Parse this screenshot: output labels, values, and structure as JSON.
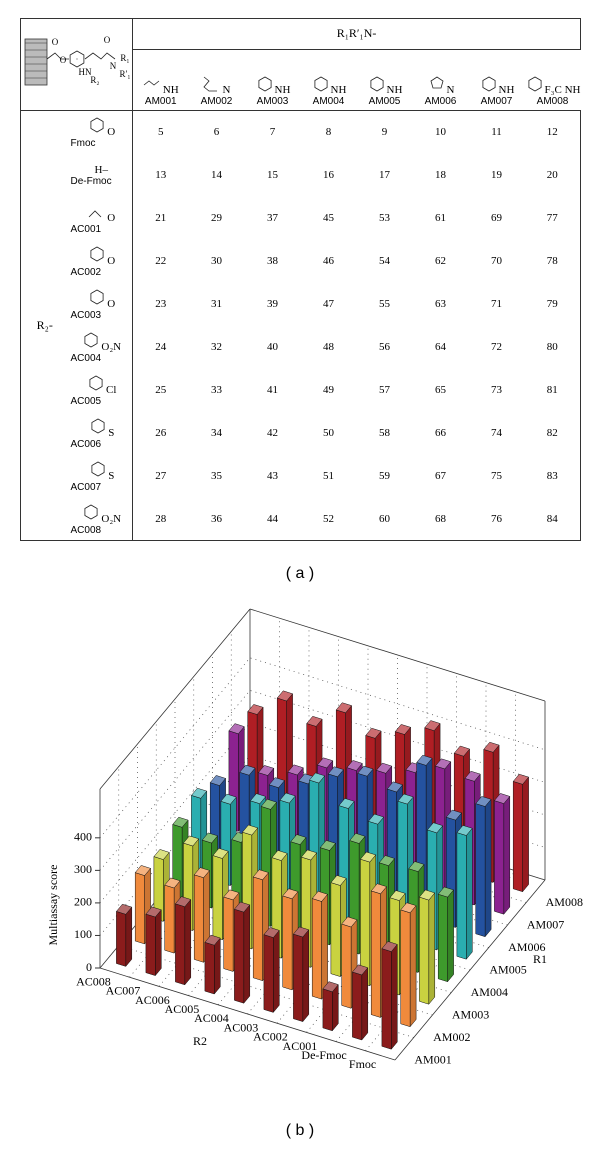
{
  "table": {
    "corner_labels": [
      "O",
      "O",
      "HN",
      "O",
      "N",
      "R₁",
      "R′₁",
      "R₂"
    ],
    "header": "R₁R′₁N-",
    "r2_label": "R₂-",
    "columns": [
      {
        "code": "AM001",
        "fragment": "NH"
      },
      {
        "code": "AM002",
        "fragment": "N"
      },
      {
        "code": "AM003",
        "fragment": "NH"
      },
      {
        "code": "AM004",
        "fragment": "NH"
      },
      {
        "code": "AM005",
        "fragment": "NH"
      },
      {
        "code": "AM006",
        "fragment": "N"
      },
      {
        "code": "AM007",
        "fragment": "NH"
      },
      {
        "code": "AM008",
        "fragment": "F₃C NH"
      }
    ],
    "rows": [
      {
        "name": "Fmoc",
        "fragment": "O",
        "cells": [
          5,
          6,
          7,
          8,
          9,
          10,
          11,
          12
        ]
      },
      {
        "name": "De-Fmoc",
        "fragment": "H–",
        "cells": [
          13,
          14,
          15,
          16,
          17,
          18,
          19,
          20
        ]
      },
      {
        "name": "AC001",
        "fragment": "O",
        "cells": [
          21,
          29,
          37,
          45,
          53,
          61,
          69,
          77
        ]
      },
      {
        "name": "AC002",
        "fragment": "O",
        "cells": [
          22,
          30,
          38,
          46,
          54,
          62,
          70,
          78
        ]
      },
      {
        "name": "AC003",
        "fragment": "O",
        "cells": [
          23,
          31,
          39,
          47,
          55,
          63,
          71,
          79
        ]
      },
      {
        "name": "AC004",
        "fragment": "O₂N",
        "cells": [
          24,
          32,
          40,
          48,
          56,
          64,
          72,
          80
        ]
      },
      {
        "name": "AC005",
        "fragment": "Cl",
        "cells": [
          25,
          33,
          41,
          49,
          57,
          65,
          73,
          81
        ]
      },
      {
        "name": "AC006",
        "fragment": "S",
        "cells": [
          26,
          34,
          42,
          50,
          58,
          66,
          74,
          82
        ]
      },
      {
        "name": "AC007",
        "fragment": "S",
        "cells": [
          27,
          35,
          43,
          51,
          59,
          67,
          75,
          83
        ]
      },
      {
        "name": "AC008",
        "fragment": "O₂N",
        "cells": [
          28,
          36,
          44,
          52,
          60,
          68,
          76,
          84
        ]
      }
    ],
    "caption": "( a )"
  },
  "chart_data": {
    "type": "bar3d",
    "caption": "( b )",
    "xlabel": "R2",
    "ylabel": "R1",
    "zlabel": "Multiassay score",
    "categories": [
      "Fmoc",
      "De-Fmoc",
      "AC001",
      "AC002",
      "AC003",
      "AC004",
      "AC005",
      "AC006",
      "AC007",
      "AC008"
    ],
    "zlim": [
      0,
      550
    ],
    "zticks": [
      0,
      100,
      200,
      300,
      400
    ],
    "grid": true,
    "series": [
      {
        "name": "AM001",
        "color": "#8b1c1c",
        "values": [
          300,
          200,
          120,
          260,
          230,
          280,
          150,
          240,
          180,
          160
        ]
      },
      {
        "name": "AM002",
        "color": "#f08a3c",
        "values": [
          350,
          380,
          250,
          300,
          280,
          310,
          220,
          260,
          200,
          210
        ]
      },
      {
        "name": "AM003",
        "color": "#c9d240",
        "values": [
          320,
          290,
          380,
          280,
          330,
          300,
          350,
          250,
          260,
          190
        ]
      },
      {
        "name": "AM004",
        "color": "#3e9a2c",
        "values": [
          260,
          310,
          300,
          340,
          290,
          280,
          360,
          230,
          200,
          220
        ]
      },
      {
        "name": "AM005",
        "color": "#2aaeb0",
        "values": [
          380,
          360,
          420,
          330,
          350,
          400,
          310,
          280,
          250,
          240
        ]
      },
      {
        "name": "AM006",
        "color": "#2452a0",
        "values": [
          400,
          330,
          470,
          360,
          380,
          350,
          300,
          260,
          270,
          210
        ]
      },
      {
        "name": "AM007",
        "color": "#8c2290",
        "values": [
          340,
          380,
          390,
          350,
          320,
          300,
          280,
          230,
          200,
          300
        ]
      },
      {
        "name": "AM008",
        "color": "#b01e24",
        "values": [
          330,
          400,
          360,
          410,
          370,
          330,
          380,
          310,
          360,
          290
        ]
      }
    ]
  }
}
